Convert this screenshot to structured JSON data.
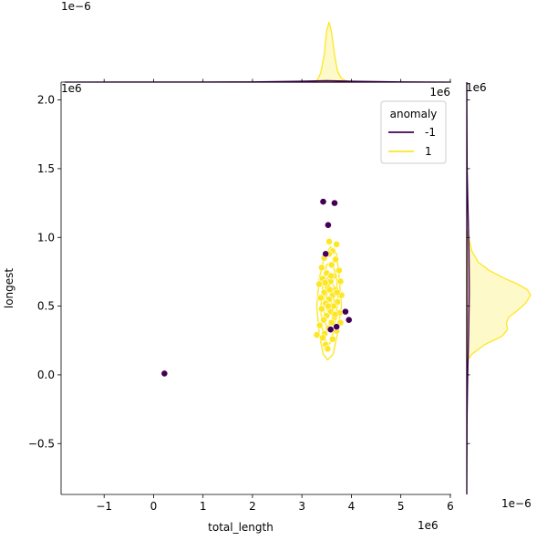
{
  "chart_data": {
    "type": "scatter",
    "title": "",
    "xlabel": "total_length",
    "ylabel": "longest",
    "x_offset_label": "1e6",
    "y_offset_label": "1e6",
    "x_offset_label_right": "1e6",
    "top_marginal_offset_label": "1e−6",
    "right_marginal_offset_label_top": "1e6",
    "right_marginal_offset_label_bottom": "1e−6",
    "xlim": [
      -1.87,
      6.02
    ],
    "ylim": [
      -0.87,
      2.13
    ],
    "x_ticks": [
      -1,
      0,
      1,
      2,
      3,
      4,
      5,
      6
    ],
    "x_tick_labels": [
      "−1",
      "0",
      "1",
      "2",
      "3",
      "4",
      "5",
      "6"
    ],
    "y_ticks": [
      -0.5,
      0.0,
      0.5,
      1.0,
      1.5,
      2.0
    ],
    "y_tick_labels": [
      "−0.5",
      "0.0",
      "0.5",
      "1.0",
      "1.5",
      "2.0"
    ],
    "grid": false,
    "legend": {
      "title": "anomaly",
      "placement": "top-right",
      "entries": [
        {
          "label": "-1",
          "color": "#440154"
        },
        {
          "label": "1",
          "color": "#fde725"
        }
      ]
    },
    "series": [
      {
        "name": "-1",
        "color": "#440154",
        "points": [
          [
            0.22,
            0.01
          ],
          [
            3.43,
            1.26
          ],
          [
            3.66,
            1.25
          ],
          [
            3.53,
            1.09
          ],
          [
            3.48,
            0.88
          ],
          [
            3.88,
            0.46
          ],
          [
            3.95,
            0.4
          ],
          [
            3.7,
            0.35
          ],
          [
            3.58,
            0.33
          ]
        ]
      },
      {
        "name": "1",
        "color": "#fde725",
        "points": [
          [
            3.55,
            0.97
          ],
          [
            3.7,
            0.95
          ],
          [
            3.62,
            0.9
          ],
          [
            3.45,
            0.85
          ],
          [
            3.55,
            0.88
          ],
          [
            3.68,
            0.84
          ],
          [
            3.4,
            0.78
          ],
          [
            3.6,
            0.8
          ],
          [
            3.75,
            0.76
          ],
          [
            3.5,
            0.74
          ],
          [
            3.65,
            0.72
          ],
          [
            3.42,
            0.7
          ],
          [
            3.58,
            0.68
          ],
          [
            3.78,
            0.68
          ],
          [
            3.35,
            0.66
          ],
          [
            3.52,
            0.64
          ],
          [
            3.68,
            0.62
          ],
          [
            3.45,
            0.6
          ],
          [
            3.62,
            0.58
          ],
          [
            3.8,
            0.58
          ],
          [
            3.38,
            0.56
          ],
          [
            3.55,
            0.55
          ],
          [
            3.72,
            0.53
          ],
          [
            3.48,
            0.52
          ],
          [
            3.64,
            0.5
          ],
          [
            3.4,
            0.48
          ],
          [
            3.58,
            0.46
          ],
          [
            3.76,
            0.45
          ],
          [
            3.5,
            0.43
          ],
          [
            3.66,
            0.42
          ],
          [
            3.44,
            0.4
          ],
          [
            3.6,
            0.38
          ],
          [
            3.78,
            0.38
          ],
          [
            3.36,
            0.36
          ],
          [
            3.54,
            0.34
          ],
          [
            3.7,
            0.32
          ],
          [
            3.3,
            0.29
          ],
          [
            3.46,
            0.3
          ],
          [
            3.62,
            0.26
          ],
          [
            3.48,
            0.22
          ],
          [
            3.52,
            0.19
          ],
          [
            3.42,
            0.27
          ],
          [
            3.56,
            0.62
          ],
          [
            3.47,
            0.67
          ],
          [
            3.71,
            0.6
          ],
          [
            3.59,
            0.72
          ],
          [
            3.53,
            0.5
          ],
          [
            3.67,
            0.44
          ]
        ]
      }
    ],
    "kde_contour": {
      "series": "1",
      "color": "#fde725",
      "levels": [
        [
          [
            3.52,
            0.11
          ],
          [
            3.63,
            0.15
          ],
          [
            3.72,
            0.3
          ],
          [
            3.8,
            0.5
          ],
          [
            3.75,
            0.72
          ],
          [
            3.7,
            0.88
          ],
          [
            3.58,
            0.93
          ],
          [
            3.46,
            0.87
          ],
          [
            3.35,
            0.7
          ],
          [
            3.3,
            0.5
          ],
          [
            3.35,
            0.3
          ],
          [
            3.43,
            0.15
          ]
        ],
        [
          [
            3.52,
            0.21
          ],
          [
            3.6,
            0.25
          ],
          [
            3.68,
            0.4
          ],
          [
            3.73,
            0.55
          ],
          [
            3.7,
            0.72
          ],
          [
            3.6,
            0.82
          ],
          [
            3.5,
            0.8
          ],
          [
            3.42,
            0.65
          ],
          [
            3.38,
            0.48
          ],
          [
            3.42,
            0.32
          ]
        ],
        [
          [
            3.52,
            0.32
          ],
          [
            3.6,
            0.36
          ],
          [
            3.65,
            0.5
          ],
          [
            3.64,
            0.65
          ],
          [
            3.56,
            0.73
          ],
          [
            3.48,
            0.68
          ],
          [
            3.44,
            0.52
          ],
          [
            3.46,
            0.4
          ]
        ],
        [
          [
            3.54,
            0.45
          ],
          [
            3.6,
            0.5
          ],
          [
            3.59,
            0.6
          ],
          [
            3.53,
            0.63
          ],
          [
            3.49,
            0.56
          ],
          [
            3.5,
            0.48
          ]
        ]
      ]
    },
    "top_marginal": {
      "series": [
        {
          "name": "1",
          "color": "#fde725",
          "x": [
            3.2,
            3.3,
            3.38,
            3.45,
            3.5,
            3.55,
            3.6,
            3.66,
            3.72,
            3.8,
            3.9,
            4.0
          ],
          "density": [
            0,
            0.02,
            0.15,
            0.45,
            0.85,
            1.0,
            0.82,
            0.45,
            0.18,
            0.06,
            0.02,
            0
          ]
        },
        {
          "name": "-1",
          "color": "#440154",
          "x": [
            -1.8,
            0,
            1,
            2,
            3,
            3.5,
            4,
            5,
            6
          ],
          "density": [
            0,
            0.001,
            0.002,
            0.004,
            0.015,
            0.025,
            0.015,
            0.003,
            0
          ]
        }
      ]
    },
    "right_marginal": {
      "series": [
        {
          "name": "1",
          "color": "#fde725",
          "y": [
            0.1,
            0.15,
            0.22,
            0.28,
            0.33,
            0.38,
            0.42,
            0.47,
            0.52,
            0.58,
            0.62,
            0.66,
            0.7,
            0.76,
            0.82,
            0.9,
            1.0,
            1.05
          ],
          "density": [
            0,
            0.08,
            0.28,
            0.55,
            0.64,
            0.62,
            0.66,
            0.8,
            0.92,
            1.0,
            0.95,
            0.8,
            0.6,
            0.35,
            0.18,
            0.08,
            0.03,
            0
          ]
        },
        {
          "name": "-1",
          "color": "#440154",
          "y": [
            -0.87,
            -0.3,
            0,
            0.3,
            0.6,
            0.9,
            1.2,
            1.5,
            2.13
          ],
          "density": [
            0,
            0.005,
            0.015,
            0.03,
            0.04,
            0.035,
            0.02,
            0.006,
            0
          ]
        }
      ]
    }
  }
}
